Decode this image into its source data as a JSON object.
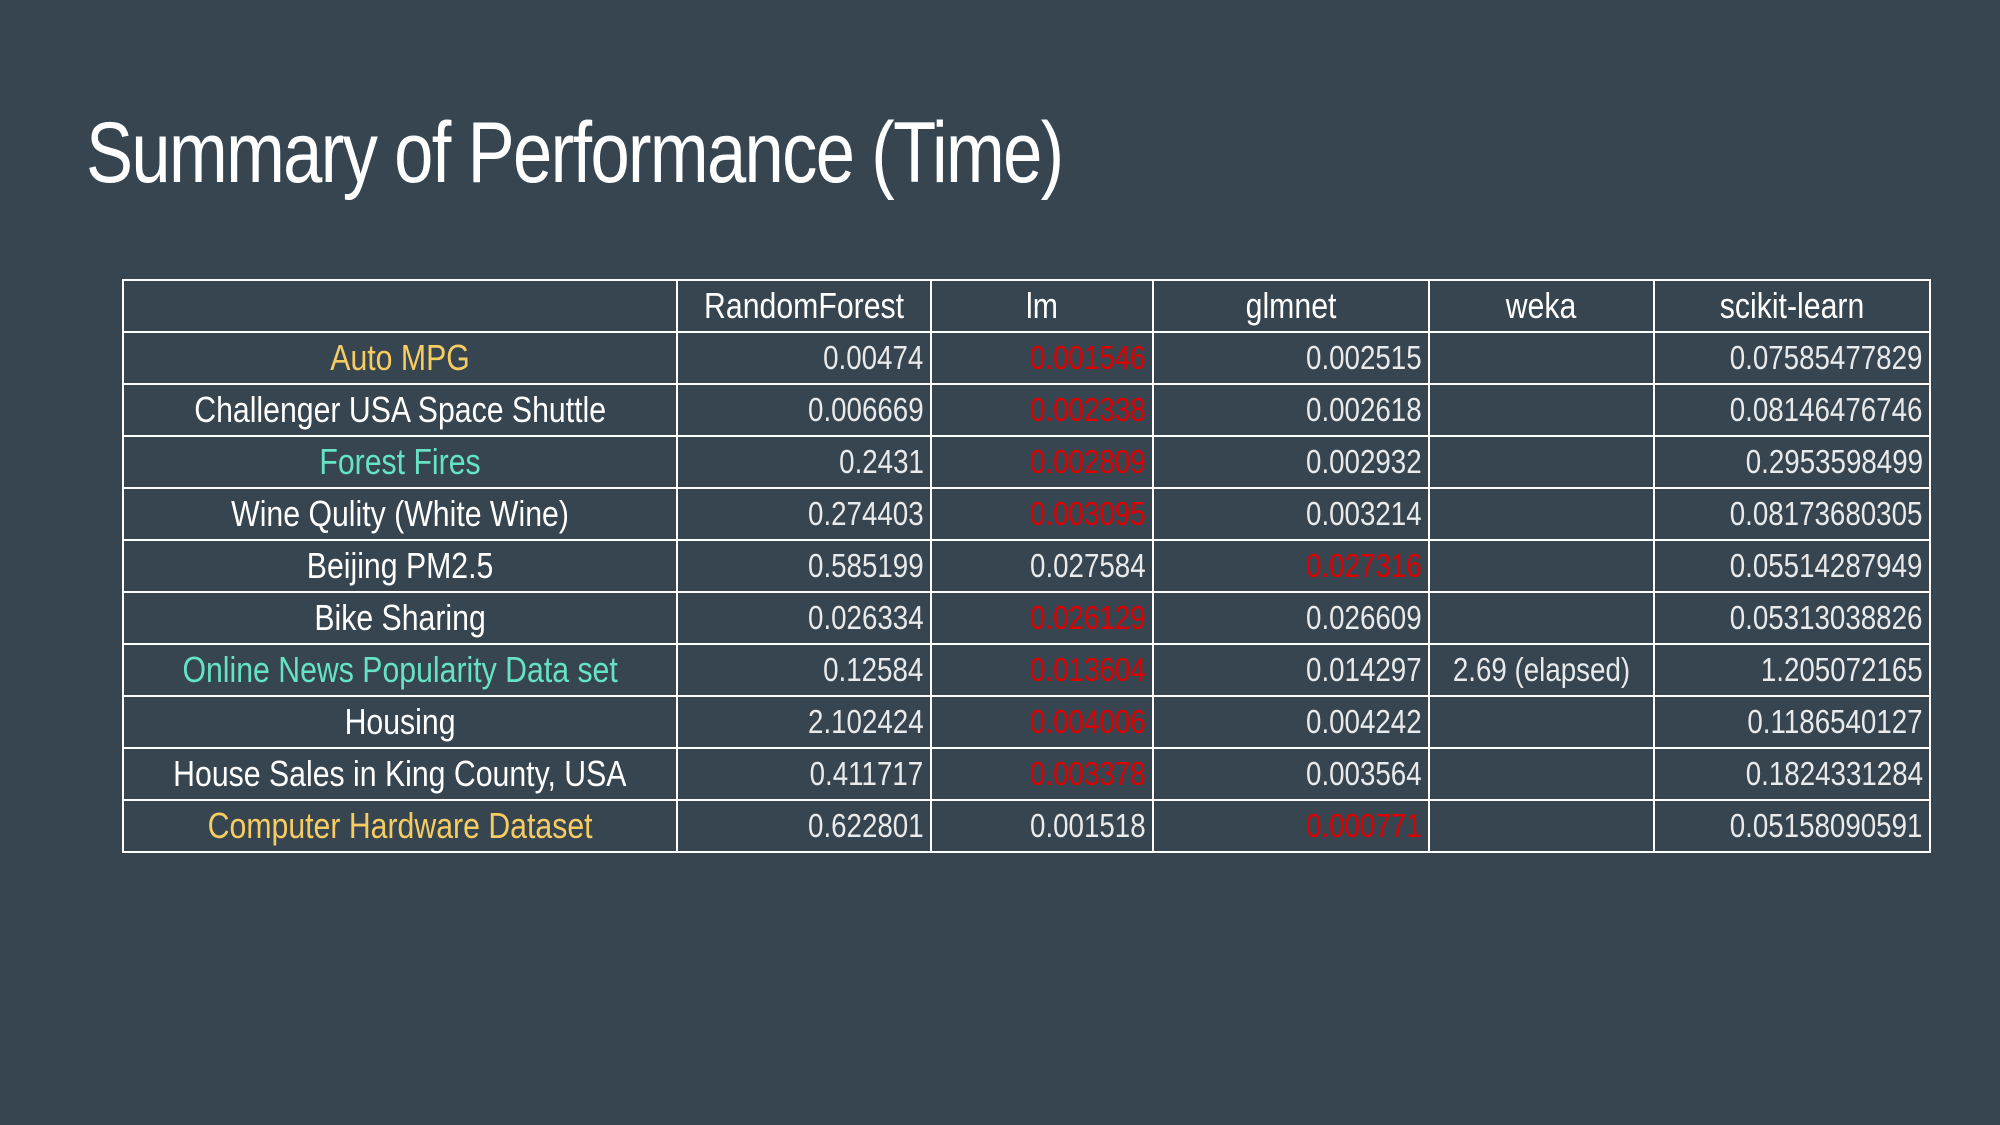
{
  "title": "Summary of Performance (Time)",
  "colors": {
    "background": "#36454f",
    "text": "#ffffff",
    "best": "#e00000",
    "yellow": "#f7cd62",
    "teal": "#66e3c4"
  },
  "table": {
    "headers": [
      "",
      "RandomForest",
      "lm",
      "glmnet",
      "weka",
      "scikit-learn"
    ],
    "rows": [
      {
        "name": "Auto MPG",
        "name_color": "yellow",
        "values": [
          "0.00474",
          "0.001546",
          "0.002515",
          "",
          "0.07585477829"
        ],
        "best": 1
      },
      {
        "name": "Challenger USA Space Shuttle",
        "name_color": "white",
        "values": [
          "0.006669",
          "0.002338",
          "0.002618",
          "",
          "0.08146476746"
        ],
        "best": 1
      },
      {
        "name": "Forest Fires",
        "name_color": "teal",
        "values": [
          "0.2431",
          "0.002809",
          "0.002932",
          "",
          "0.2953598499"
        ],
        "best": 1
      },
      {
        "name": "Wine Qulity (White Wine)",
        "name_color": "white",
        "values": [
          "0.274403",
          "0.003095",
          "0.003214",
          "",
          "0.08173680305"
        ],
        "best": 1
      },
      {
        "name": "Beijing PM2.5",
        "name_color": "white",
        "values": [
          "0.585199",
          "0.027584",
          "0.027316",
          "",
          "0.05514287949"
        ],
        "best": 2
      },
      {
        "name": "Bike Sharing",
        "name_color": "white",
        "values": [
          "0.026334",
          "0.026129",
          "0.026609",
          "",
          "0.05313038826"
        ],
        "best": 1
      },
      {
        "name": "Online News Popularity Data set",
        "name_color": "teal",
        "values": [
          "0.12584",
          "0.013604",
          "0.014297",
          "2.69 (elapsed)",
          "1.205072165"
        ],
        "best": 1
      },
      {
        "name": "Housing",
        "name_color": "white",
        "values": [
          "2.102424",
          "0.004006",
          "0.004242",
          "",
          "0.1186540127"
        ],
        "best": 1
      },
      {
        "name": "House Sales in King County, USA",
        "name_color": "white",
        "values": [
          "0.411717",
          "0.003378",
          "0.003564",
          "",
          "0.1824331284"
        ],
        "best": 1
      },
      {
        "name": "Computer Hardware Dataset",
        "name_color": "yellow",
        "values": [
          "0.622801",
          "0.001518",
          "0.000771",
          "",
          "0.05158090591"
        ],
        "best": 2
      }
    ]
  }
}
